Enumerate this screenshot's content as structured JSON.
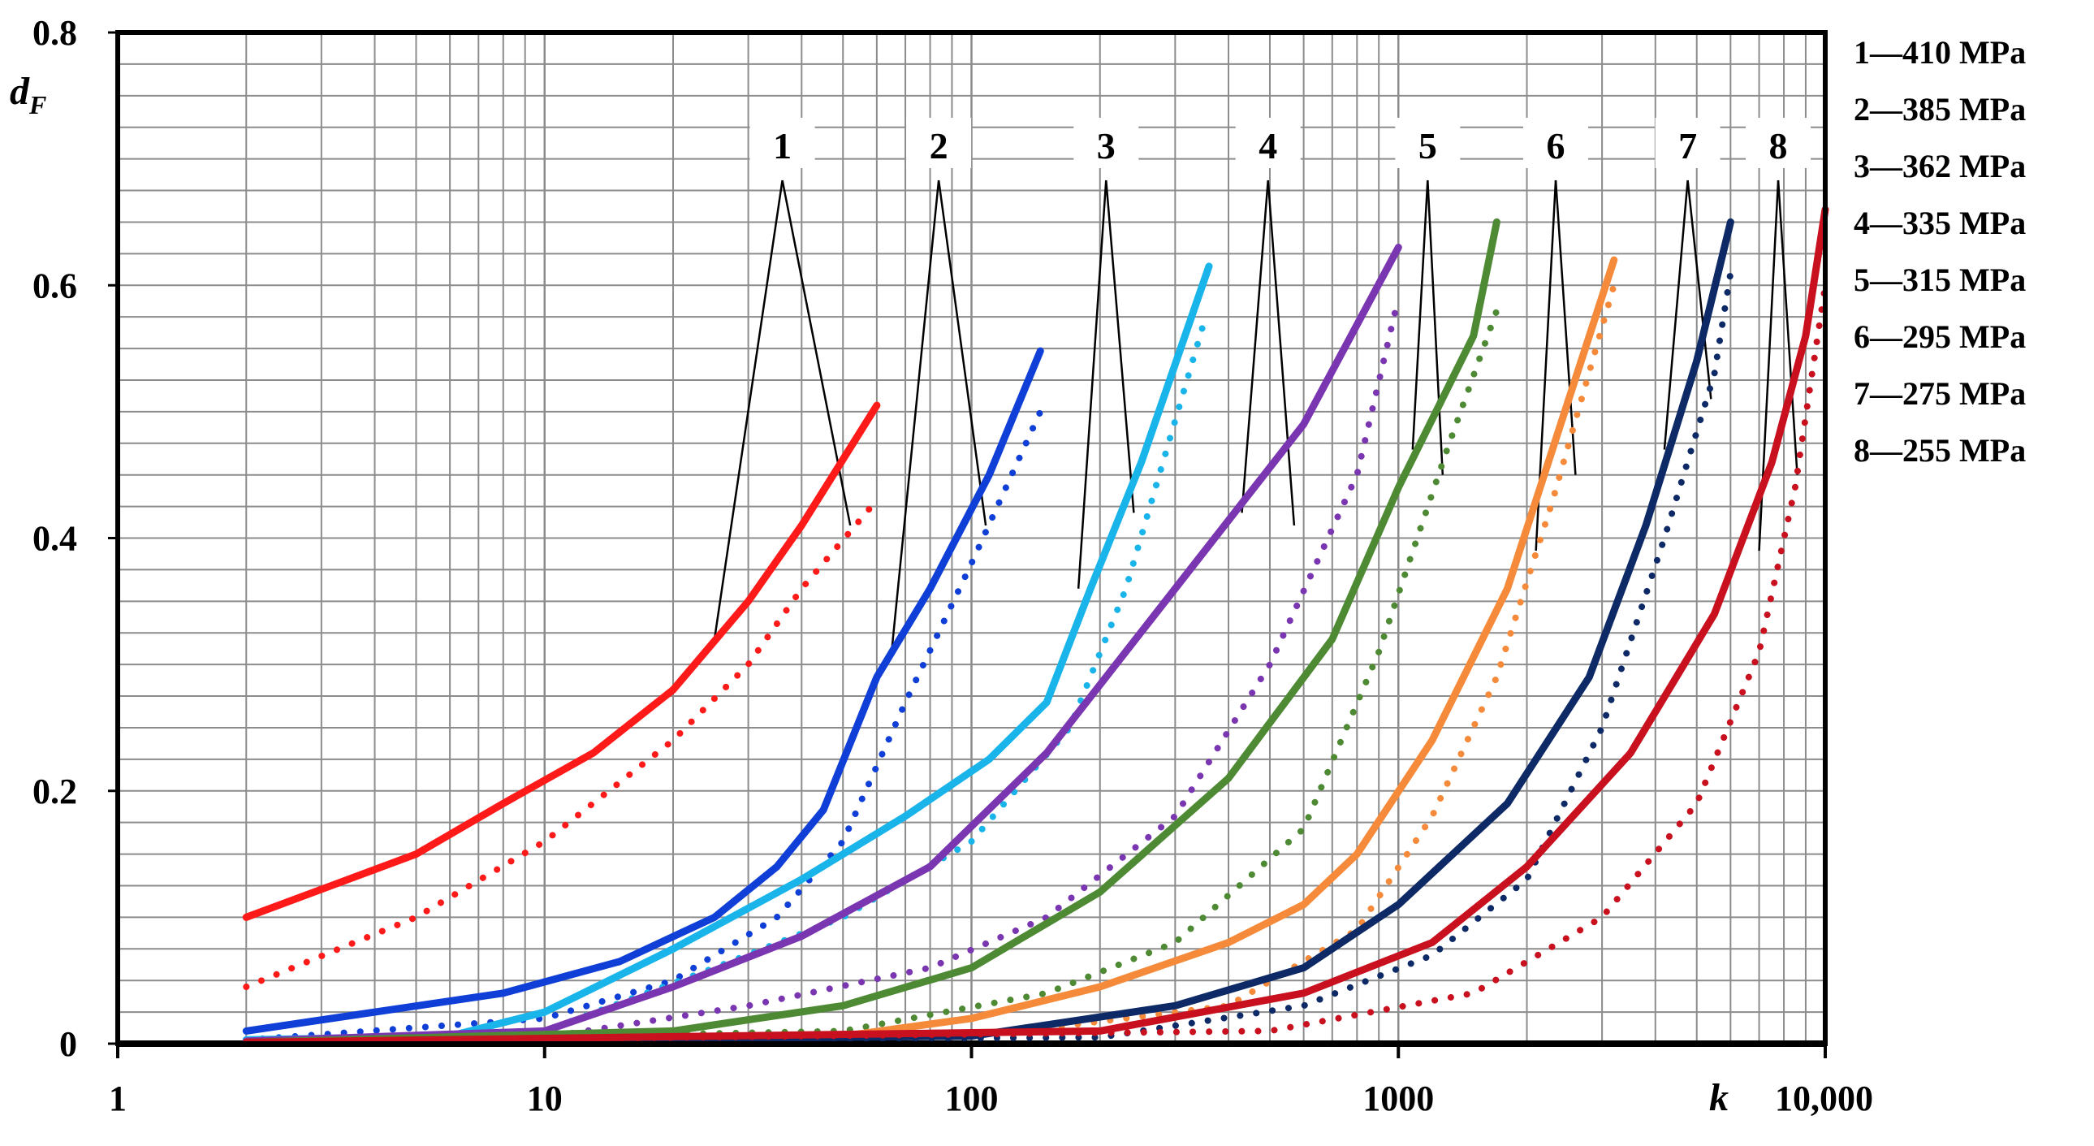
{
  "chart_data": {
    "type": "line",
    "title": "",
    "xlabel": "k",
    "ylabel": "d",
    "ylabel_sub": "F",
    "x_scale": "log",
    "xlim": [
      1,
      10000
    ],
    "ylim": [
      0,
      0.8
    ],
    "grid": true,
    "x_ticks": [
      {
        "value": 1,
        "label": "1"
      },
      {
        "value": 10,
        "label": "10"
      },
      {
        "value": 100,
        "label": "100"
      },
      {
        "value": 1000,
        "label": "1000"
      },
      {
        "value": 10000,
        "label": "10,000"
      }
    ],
    "y_ticks": [
      {
        "value": 0,
        "label": "0"
      },
      {
        "value": 0.2,
        "label": "0.2"
      },
      {
        "value": 0.4,
        "label": "0.4"
      },
      {
        "value": 0.6,
        "label": "0.6"
      },
      {
        "value": 0.8,
        "label": "0.8"
      }
    ],
    "legend": {
      "placement": "right",
      "entries": [
        "1—410 MPa",
        "2—385 MPa",
        "3—362 MPa",
        "4—335 MPa",
        "5—315 MPa",
        "6—295 MPa",
        "7—275 MPa",
        "8—255 MPa"
      ]
    },
    "series": [
      {
        "id": "1",
        "name": "1—410 MPa",
        "color": "#ff1a1a",
        "solid": [
          [
            2,
            0.1
          ],
          [
            5,
            0.15
          ],
          [
            8,
            0.19
          ],
          [
            13,
            0.23
          ],
          [
            20,
            0.28
          ],
          [
            30,
            0.35
          ],
          [
            40,
            0.41
          ],
          [
            60,
            0.505
          ]
        ],
        "dotted": [
          [
            2,
            0.045
          ],
          [
            5,
            0.1
          ],
          [
            10,
            0.16
          ],
          [
            20,
            0.24
          ],
          [
            30,
            0.3
          ],
          [
            40,
            0.36
          ],
          [
            60,
            0.43
          ]
        ],
        "callout": {
          "label": "1",
          "solid_pt": [
            25,
            0.32
          ],
          "dotted_pt": [
            52,
            0.41
          ]
        }
      },
      {
        "id": "2",
        "name": "2—385 MPa",
        "color": "#0f3fd6",
        "solid": [
          [
            2,
            0.01
          ],
          [
            8,
            0.04
          ],
          [
            15,
            0.065
          ],
          [
            25,
            0.1
          ],
          [
            35,
            0.14
          ],
          [
            45,
            0.185
          ],
          [
            60,
            0.29
          ],
          [
            80,
            0.36
          ],
          [
            110,
            0.45
          ],
          [
            145,
            0.548
          ]
        ],
        "dotted": [
          [
            2,
            0.003
          ],
          [
            10,
            0.02
          ],
          [
            20,
            0.05
          ],
          [
            35,
            0.1
          ],
          [
            50,
            0.16
          ],
          [
            70,
            0.27
          ],
          [
            100,
            0.38
          ],
          [
            145,
            0.5
          ]
        ],
        "callout": {
          "label": "2",
          "solid_pt": [
            65,
            0.31
          ],
          "dotted_pt": [
            108,
            0.41
          ]
        }
      },
      {
        "id": "3",
        "name": "3—362 MPa",
        "color": "#18b4ea",
        "solid": [
          [
            2,
            0.003
          ],
          [
            6,
            0.006
          ],
          [
            10,
            0.025
          ],
          [
            20,
            0.075
          ],
          [
            40,
            0.13
          ],
          [
            70,
            0.18
          ],
          [
            110,
            0.225
          ],
          [
            150,
            0.27
          ],
          [
            190,
            0.36
          ],
          [
            250,
            0.46
          ],
          [
            360,
            0.615
          ]
        ],
        "dotted": [
          [
            2,
            0.002
          ],
          [
            10,
            0.01
          ],
          [
            25,
            0.06
          ],
          [
            50,
            0.1
          ],
          [
            100,
            0.16
          ],
          [
            170,
            0.25
          ],
          [
            230,
            0.36
          ],
          [
            350,
            0.57
          ]
        ],
        "callout": {
          "label": "3",
          "solid_pt": [
            178,
            0.36
          ],
          "dotted_pt": [
            240,
            0.42
          ]
        }
      },
      {
        "id": "4",
        "name": "4—335 MPa",
        "color": "#7a35b0",
        "solid": [
          [
            2,
            0.002
          ],
          [
            10,
            0.01
          ],
          [
            20,
            0.045
          ],
          [
            40,
            0.085
          ],
          [
            80,
            0.14
          ],
          [
            150,
            0.23
          ],
          [
            300,
            0.36
          ],
          [
            600,
            0.49
          ],
          [
            1000,
            0.63
          ]
        ],
        "dotted": [
          [
            2,
            0.001
          ],
          [
            10,
            0.005
          ],
          [
            30,
            0.03
          ],
          [
            80,
            0.06
          ],
          [
            150,
            0.1
          ],
          [
            300,
            0.18
          ],
          [
            500,
            0.3
          ],
          [
            800,
            0.45
          ],
          [
            1000,
            0.59
          ]
        ],
        "callout": {
          "label": "4",
          "solid_pt": [
            430,
            0.42
          ],
          "dotted_pt": [
            570,
            0.41
          ]
        }
      },
      {
        "id": "5",
        "name": "5—315 MPa",
        "color": "#4e8a34",
        "solid": [
          [
            2,
            0.001
          ],
          [
            20,
            0.01
          ],
          [
            50,
            0.03
          ],
          [
            100,
            0.06
          ],
          [
            200,
            0.12
          ],
          [
            400,
            0.21
          ],
          [
            700,
            0.32
          ],
          [
            1000,
            0.44
          ],
          [
            1500,
            0.56
          ],
          [
            1700,
            0.65
          ]
        ],
        "dotted": [
          [
            2,
            0.001
          ],
          [
            50,
            0.01
          ],
          [
            150,
            0.04
          ],
          [
            300,
            0.08
          ],
          [
            600,
            0.17
          ],
          [
            900,
            0.31
          ],
          [
            1300,
            0.47
          ],
          [
            1700,
            0.58
          ]
        ],
        "callout": {
          "label": "5",
          "solid_pt": [
            1080,
            0.47
          ],
          "dotted_pt": [
            1270,
            0.45
          ]
        }
      },
      {
        "id": "6",
        "name": "6—295 MPa",
        "color": "#f58a3a",
        "solid": [
          [
            2,
            0.001
          ],
          [
            50,
            0.006
          ],
          [
            100,
            0.02
          ],
          [
            200,
            0.045
          ],
          [
            400,
            0.08
          ],
          [
            600,
            0.11
          ],
          [
            800,
            0.15
          ],
          [
            1200,
            0.24
          ],
          [
            1800,
            0.36
          ],
          [
            2400,
            0.49
          ],
          [
            3200,
            0.62
          ]
        ],
        "dotted": [
          [
            2,
            0.001
          ],
          [
            100,
            0.005
          ],
          [
            400,
            0.03
          ],
          [
            800,
            0.09
          ],
          [
            1200,
            0.18
          ],
          [
            1700,
            0.29
          ],
          [
            2300,
            0.43
          ],
          [
            3200,
            0.6
          ]
        ],
        "callout": {
          "label": "6",
          "solid_pt": [
            2100,
            0.39
          ],
          "dotted_pt": [
            2600,
            0.45
          ]
        }
      },
      {
        "id": "7",
        "name": "7—275 MPa",
        "color": "#0d2a66",
        "solid": [
          [
            2,
            0.001
          ],
          [
            100,
            0.006
          ],
          [
            300,
            0.03
          ],
          [
            600,
            0.06
          ],
          [
            1000,
            0.11
          ],
          [
            1800,
            0.19
          ],
          [
            2800,
            0.29
          ],
          [
            3800,
            0.41
          ],
          [
            5000,
            0.54
          ],
          [
            6000,
            0.65
          ]
        ],
        "dotted": [
          [
            2,
            0.001
          ],
          [
            200,
            0.005
          ],
          [
            600,
            0.03
          ],
          [
            1200,
            0.07
          ],
          [
            2000,
            0.13
          ],
          [
            3000,
            0.25
          ],
          [
            4200,
            0.4
          ],
          [
            5500,
            0.53
          ],
          [
            6000,
            0.61
          ]
        ],
        "callout": {
          "label": "7",
          "solid_pt": [
            4200,
            0.47
          ],
          "dotted_pt": [
            5400,
            0.51
          ]
        }
      },
      {
        "id": "8",
        "name": "8—255 MPa",
        "color": "#c8101e",
        "solid": [
          [
            2,
            0.001
          ],
          [
            200,
            0.01
          ],
          [
            600,
            0.04
          ],
          [
            1200,
            0.08
          ],
          [
            2000,
            0.14
          ],
          [
            3500,
            0.23
          ],
          [
            5500,
            0.34
          ],
          [
            7500,
            0.46
          ],
          [
            9000,
            0.56
          ],
          [
            10000,
            0.66
          ]
        ],
        "dotted": [
          [
            2,
            0.001
          ],
          [
            500,
            0.01
          ],
          [
            1500,
            0.04
          ],
          [
            3000,
            0.1
          ],
          [
            5000,
            0.19
          ],
          [
            7000,
            0.31
          ],
          [
            8500,
            0.44
          ],
          [
            10000,
            0.6
          ]
        ],
        "callout": {
          "label": "8",
          "solid_pt": [
            7000,
            0.39
          ],
          "dotted_pt": [
            8600,
            0.45
          ]
        }
      }
    ]
  }
}
